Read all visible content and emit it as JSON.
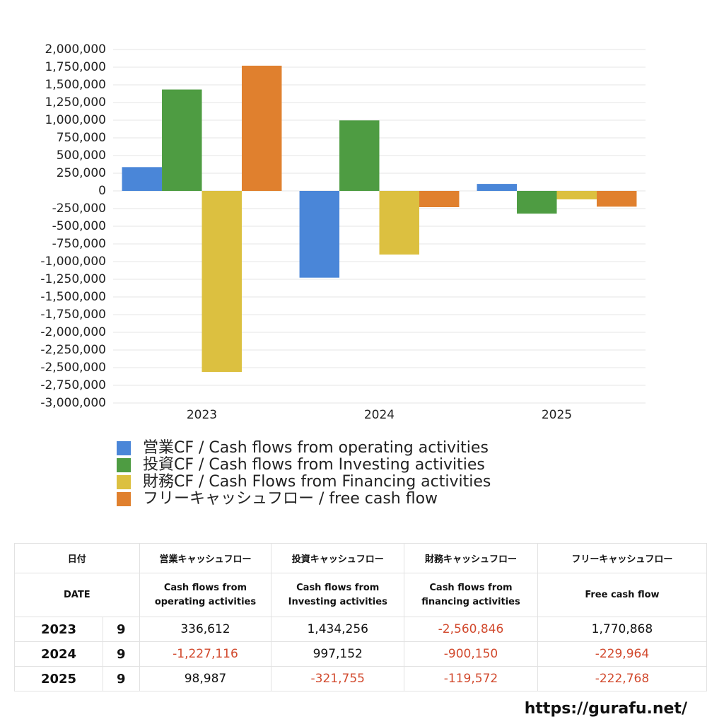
{
  "chart_data": {
    "type": "bar",
    "categories": [
      "2023",
      "2024",
      "2025"
    ],
    "series": [
      {
        "name": "営業CF / Cash flows from operating activities",
        "color": "#4a86d8",
        "values": [
          336612,
          -1227116,
          98987
        ]
      },
      {
        "name": "投資CF / Cash flows from Investing activities",
        "color": "#4e9c42",
        "values": [
          1434256,
          997152,
          -321755
        ]
      },
      {
        "name": "財務CF / Cash Flows from Financing activities",
        "color": "#dcc040",
        "values": [
          -2560846,
          -900150,
          -119572
        ]
      },
      {
        "name": "フリーキャッシュフロー / free cash flow",
        "color": "#e0802e",
        "values": [
          1770868,
          -229964,
          -222768
        ]
      }
    ],
    "ylim": [
      -3000000,
      2000000
    ],
    "yticks": [
      {
        "value": -3000000,
        "label": "-3,000,000"
      },
      {
        "value": -2750000,
        "label": "-2,750,000"
      },
      {
        "value": -2500000,
        "label": "-2,500,000"
      },
      {
        "value": -2250000,
        "label": "-2,250,000"
      },
      {
        "value": -2000000,
        "label": "-2,000,000"
      },
      {
        "value": -1750000,
        "label": "-1,750,000"
      },
      {
        "value": -1500000,
        "label": "-1,500,000"
      },
      {
        "value": -1250000,
        "label": "-1,250,000"
      },
      {
        "value": -1000000,
        "label": "-1,000,000"
      },
      {
        "value": -750000,
        "label": "-750,000"
      },
      {
        "value": -500000,
        "label": "-500,000"
      },
      {
        "value": -250000,
        "label": "-250,000"
      },
      0,
      {
        "value": 250000,
        "label": "250,000"
      },
      {
        "value": 500000,
        "label": "500,000"
      },
      {
        "value": 750000,
        "label": "750,000"
      },
      {
        "value": 1000000,
        "label": "1,000,000"
      },
      {
        "value": 1250000,
        "label": "1,250,000"
      },
      {
        "value": 1500000,
        "label": "1,500,000"
      },
      {
        "value": 1750000,
        "label": "1,750,000"
      },
      {
        "value": 2000000,
        "label": "2,000,000"
      }
    ],
    "grid": true
  },
  "table": {
    "header": [
      "日付",
      "営業キャッシュフロー",
      "投資キャッシュフロー",
      "財務キャッシュフロー",
      "フリーキャッシュフロー"
    ],
    "subheader": [
      "DATE",
      "Cash flows from\noperating activities",
      "Cash flows from\nInvesting activities",
      "Cash flows from\nfinancing activities",
      "Free cash flow"
    ],
    "rows": [
      [
        "2023",
        "9",
        "336,612",
        "1,434,256",
        "-2,560,846",
        "1,770,868"
      ],
      [
        "2024",
        "9",
        "-1,227,116",
        "997,152",
        "-900,150",
        "-229,964"
      ],
      [
        "2025",
        "9",
        "98,987",
        "-321,755",
        "-119,572",
        "-222,768"
      ]
    ]
  },
  "footer": "https://gurafu.net/"
}
